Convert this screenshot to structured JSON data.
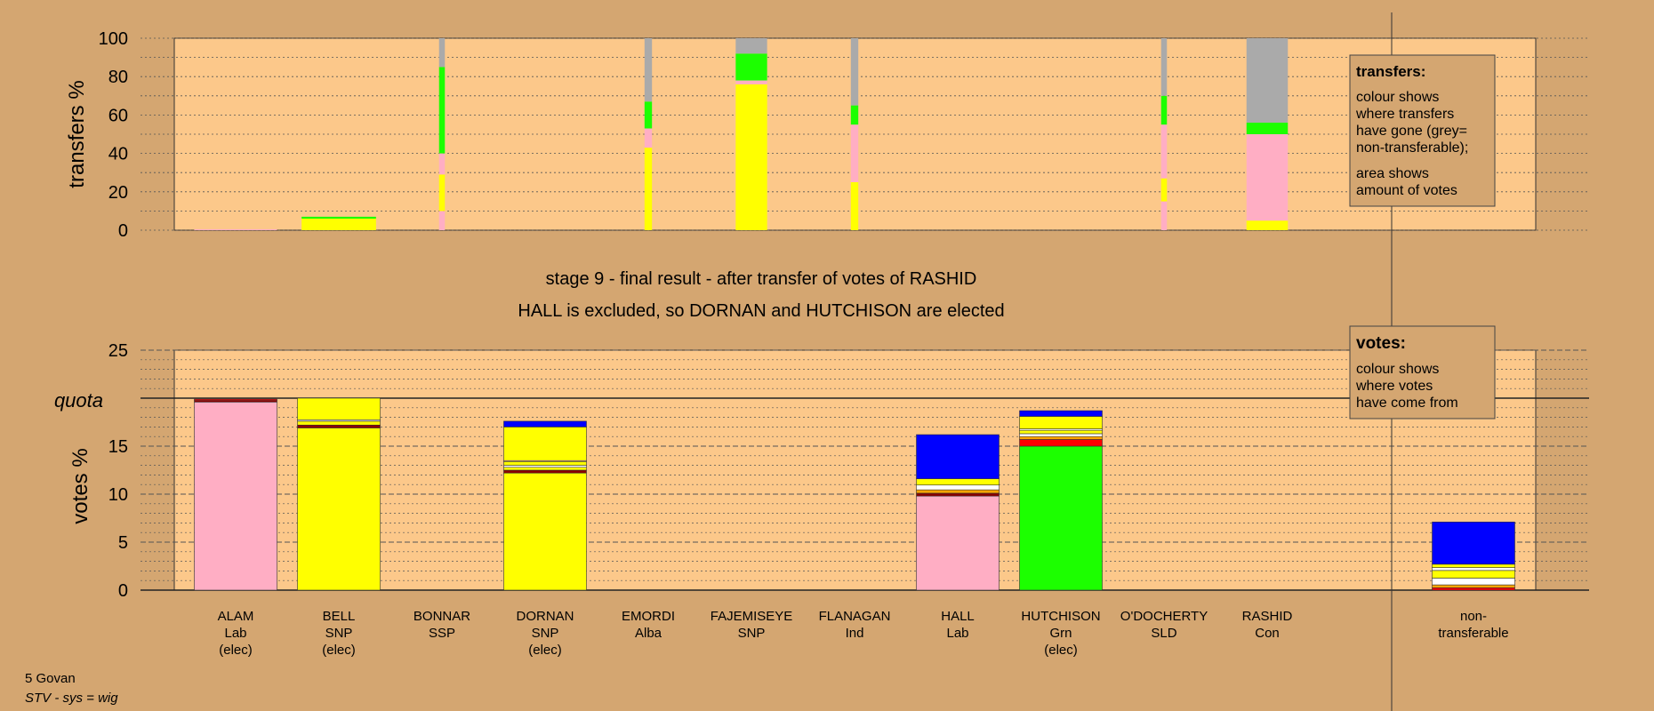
{
  "colors": {
    "background": "#d4a671",
    "plot_background": "#fcc88a",
    "Lab": "#ffaec4",
    "SNP": "#ffff00",
    "Grn": "#1cff00",
    "Con": "#0000ff",
    "SSP": "#ff0000",
    "Alba": "#8b0000",
    "Ind": "#ffffff",
    "SLD": "#ffa500",
    "non_transferable": "#aaaaaa"
  },
  "titles": {
    "line1": "stage 9 - final result - after transfer of votes of RASHID",
    "line2": "HALL is excluded, so DORNAN and HUTCHISON are elected"
  },
  "footer": {
    "constituency": "5 Govan",
    "system": "STV - sys = wig"
  },
  "legend_transfers": {
    "title": "transfers:",
    "lines1": [
      "colour shows",
      "where transfers",
      "have gone (grey=",
      "non-transferable);"
    ],
    "lines2": [
      "area shows",
      "amount of votes"
    ]
  },
  "legend_votes": {
    "title": "votes:",
    "lines": [
      "colour shows",
      "where votes",
      "have come from"
    ]
  },
  "chart_data": [
    {
      "type": "bar",
      "subtype": "stacked",
      "ylabel": "transfers %",
      "ylim": [
        0,
        100
      ],
      "yticks": [
        0,
        20,
        40,
        60,
        80,
        100
      ],
      "categories": [
        "ALAM",
        "BELL",
        "BONNAR",
        "DORNAN",
        "EMORDI",
        "FAJEMISEYE",
        "FLANAGAN",
        "HALL",
        "HUTCHISON",
        "O'DOCHERTY",
        "RASHID"
      ],
      "bars": [
        {
          "candidate": "ALAM",
          "width": 1.0,
          "segments": [
            {
              "party": "Lab",
              "value": 0.5
            }
          ]
        },
        {
          "candidate": "BELL",
          "width": 0.9,
          "segments": [
            {
              "party": "SNP",
              "value": 6
            },
            {
              "party": "Grn",
              "value": 1
            }
          ]
        },
        {
          "candidate": "BONNAR",
          "width": 0.07,
          "segments": [
            {
              "party": "Lab",
              "value": 10
            },
            {
              "party": "SNP",
              "value": 19
            },
            {
              "party": "Lab",
              "value": 11
            },
            {
              "party": "Grn",
              "value": 45
            },
            {
              "party": "non_transferable",
              "value": 15
            }
          ]
        },
        {
          "candidate": "EMORDI",
          "width": 0.09,
          "segments": [
            {
              "party": "SNP",
              "value": 43
            },
            {
              "party": "Lab",
              "value": 10
            },
            {
              "party": "Grn",
              "value": 14
            },
            {
              "party": "non_transferable",
              "value": 33
            }
          ]
        },
        {
          "candidate": "FAJEMISEYE",
          "width": 0.38,
          "segments": [
            {
              "party": "SNP",
              "value": 76
            },
            {
              "party": "Lab",
              "value": 2
            },
            {
              "party": "Grn",
              "value": 14
            },
            {
              "party": "non_transferable",
              "value": 8
            }
          ]
        },
        {
          "candidate": "FLANAGAN",
          "width": 0.09,
          "segments": [
            {
              "party": "SNP",
              "value": 25
            },
            {
              "party": "Lab",
              "value": 30
            },
            {
              "party": "Grn",
              "value": 10
            },
            {
              "party": "non_transferable",
              "value": 35
            }
          ]
        },
        {
          "candidate": "O'DOCHERTY",
          "width": 0.07,
          "segments": [
            {
              "party": "Lab",
              "value": 15
            },
            {
              "party": "SNP",
              "value": 12
            },
            {
              "party": "Lab",
              "value": 28
            },
            {
              "party": "Grn",
              "value": 15
            },
            {
              "party": "non_transferable",
              "value": 30
            }
          ]
        },
        {
          "candidate": "RASHID",
          "width": 0.5,
          "segments": [
            {
              "party": "SNP",
              "value": 5
            },
            {
              "party": "Lab",
              "value": 45
            },
            {
              "party": "Grn",
              "value": 6
            },
            {
              "party": "non_transferable",
              "value": 44
            }
          ]
        }
      ]
    },
    {
      "type": "bar",
      "subtype": "stacked",
      "ylabel": "votes %",
      "ylim": [
        0,
        25
      ],
      "yticks": [
        0,
        5,
        10,
        15,
        20,
        25
      ],
      "quota": 20,
      "quota_label": "quota",
      "categories": [
        "ALAM",
        "BELL",
        "BONNAR",
        "DORNAN",
        "EMORDI",
        "FAJEMISEYE",
        "FLANAGAN",
        "HALL",
        "HUTCHISON",
        "O'DOCHERTY",
        "RASHID",
        "non-transferable"
      ],
      "labels": [
        {
          "name": "ALAM",
          "party": "Lab",
          "status": "(elec)"
        },
        {
          "name": "BELL",
          "party": "SNP",
          "status": "(elec)"
        },
        {
          "name": "BONNAR",
          "party": "SSP",
          "status": ""
        },
        {
          "name": "DORNAN",
          "party": "SNP",
          "status": "(elec)"
        },
        {
          "name": "EMORDI",
          "party": "Alba",
          "status": ""
        },
        {
          "name": "FAJEMISEYE",
          "party": "SNP",
          "status": ""
        },
        {
          "name": "FLANAGAN",
          "party": "Ind",
          "status": ""
        },
        {
          "name": "HALL",
          "party": "Lab",
          "status": ""
        },
        {
          "name": "HUTCHISON",
          "party": "Grn",
          "status": "(elec)"
        },
        {
          "name": "O'DOCHERTY",
          "party": "SLD",
          "status": ""
        },
        {
          "name": "RASHID",
          "party": "Con",
          "status": ""
        },
        {
          "name": "non-",
          "party": "transferable",
          "status": ""
        }
      ],
      "bars": [
        {
          "candidate": "ALAM",
          "segments": [
            {
              "party": "Lab",
              "value": 19.6
            },
            {
              "party": "Alba",
              "value": 0.15
            },
            {
              "party": "SSP",
              "value": 0.15
            }
          ]
        },
        {
          "candidate": "BELL",
          "segments": [
            {
              "party": "SNP",
              "value": 16.9
            },
            {
              "party": "Alba",
              "value": 0.3
            },
            {
              "party": "SNP",
              "value": 0.4
            },
            {
              "party": "Ind",
              "value": 0.15
            },
            {
              "party": "SNP",
              "value": 2.25
            }
          ]
        },
        {
          "candidate": "BONNAR",
          "segments": []
        },
        {
          "candidate": "DORNAN",
          "segments": [
            {
              "party": "SNP",
              "value": 12.2
            },
            {
              "party": "Alba",
              "value": 0.3
            },
            {
              "party": "SNP",
              "value": 0.3
            },
            {
              "party": "Ind",
              "value": 0.2
            },
            {
              "party": "SNP",
              "value": 0.4
            },
            {
              "party": "Lab",
              "value": 0.1
            },
            {
              "party": "SNP",
              "value": 3.5
            },
            {
              "party": "Con",
              "value": 0.6
            }
          ]
        },
        {
          "candidate": "EMORDI",
          "segments": []
        },
        {
          "candidate": "FAJEMISEYE",
          "segments": []
        },
        {
          "candidate": "FLANAGAN",
          "segments": []
        },
        {
          "candidate": "HALL",
          "segments": [
            {
              "party": "Lab",
              "value": 9.8
            },
            {
              "party": "Alba",
              "value": 0.3
            },
            {
              "party": "SLD",
              "value": 0.35
            },
            {
              "party": "Ind",
              "value": 0.5
            },
            {
              "party": "SNP",
              "value": 0.65
            },
            {
              "party": "Con",
              "value": 4.6
            }
          ]
        },
        {
          "candidate": "HUTCHISON",
          "segments": [
            {
              "party": "Grn",
              "value": 15.0
            },
            {
              "party": "SSP",
              "value": 0.7
            },
            {
              "party": "SLD",
              "value": 0.3
            },
            {
              "party": "Ind",
              "value": 0.3
            },
            {
              "party": "SNP",
              "value": 0.35
            },
            {
              "party": "Ind",
              "value": 0.15
            },
            {
              "party": "SNP",
              "value": 1.3
            },
            {
              "party": "Con",
              "value": 0.6
            }
          ]
        },
        {
          "candidate": "O'DOCHERTY",
          "segments": []
        },
        {
          "candidate": "RASHID",
          "segments": []
        },
        {
          "candidate": "non-transferable",
          "segments": [
            {
              "party": "SSP",
              "value": 0.25
            },
            {
              "party": "SLD",
              "value": 0.3
            },
            {
              "party": "Ind",
              "value": 0.7
            },
            {
              "party": "SNP",
              "value": 0.8
            },
            {
              "party": "Ind",
              "value": 0.3
            },
            {
              "party": "SNP",
              "value": 0.35
            },
            {
              "party": "Con",
              "value": 4.4
            }
          ]
        }
      ]
    }
  ]
}
